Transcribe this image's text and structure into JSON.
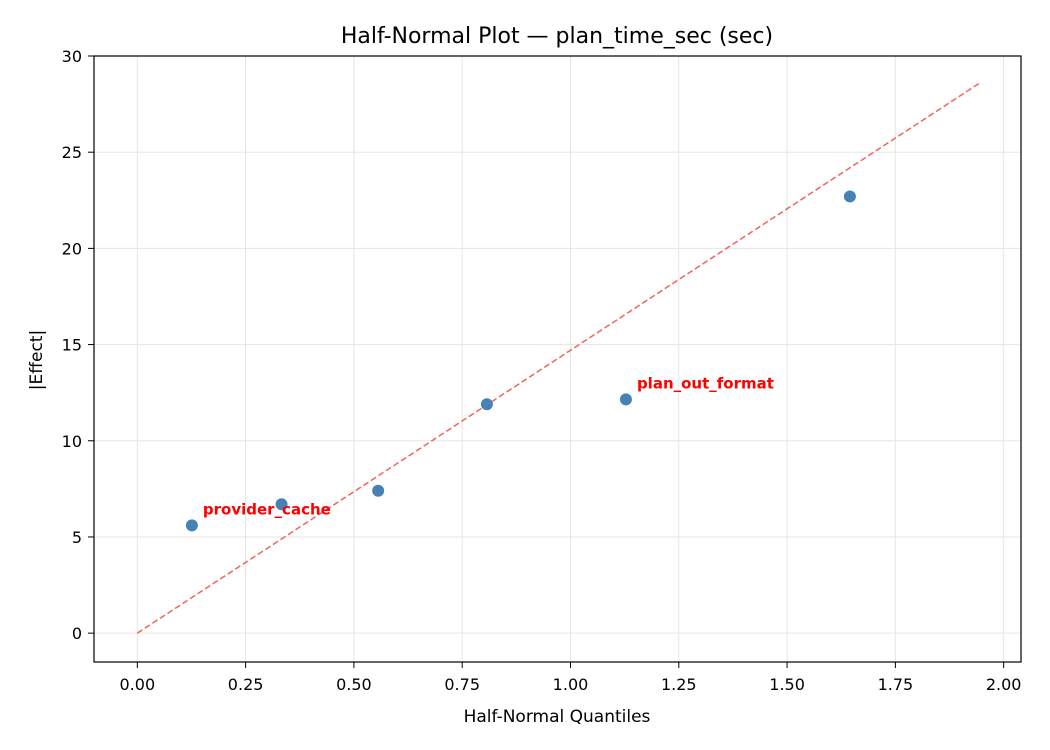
{
  "chart_data": {
    "type": "scatter",
    "title": "Half-Normal Plot — plan_time_sec (sec)",
    "xlabel": "Half-Normal Quantiles",
    "ylabel": "|Effect|",
    "xlim": [
      -0.1,
      2.04
    ],
    "ylim": [
      -1.5,
      30.0
    ],
    "xticks": [
      0.0,
      0.25,
      0.5,
      0.75,
      1.0,
      1.25,
      1.5,
      1.75,
      2.0
    ],
    "xtick_labels": [
      "0.00",
      "0.25",
      "0.50",
      "0.75",
      "1.00",
      "1.25",
      "1.50",
      "1.75",
      "2.00"
    ],
    "yticks": [
      0,
      5,
      10,
      15,
      20,
      25,
      30
    ],
    "ytick_labels": [
      "0",
      "5",
      "10",
      "15",
      "20",
      "25",
      "30"
    ],
    "grid": true,
    "points": [
      {
        "x": 0.126,
        "y": 5.6
      },
      {
        "x": 0.333,
        "y": 6.7
      },
      {
        "x": 0.556,
        "y": 7.4
      },
      {
        "x": 0.807,
        "y": 11.9
      },
      {
        "x": 1.128,
        "y": 12.15
      },
      {
        "x": 1.645,
        "y": 22.7
      }
    ],
    "reference_line": {
      "x": [
        0.0,
        1.945
      ],
      "y": [
        0.0,
        28.6
      ]
    },
    "annotations": [
      {
        "text": "provider_cache",
        "x": 0.126,
        "y": 5.6
      },
      {
        "text": "plan_out_format",
        "x": 1.128,
        "y": 12.15
      }
    ],
    "colors": {
      "points": "#4682b4",
      "reference_line": "#f0645a",
      "annotations": "#ff0000",
      "grid": "#e6e6e6"
    }
  }
}
